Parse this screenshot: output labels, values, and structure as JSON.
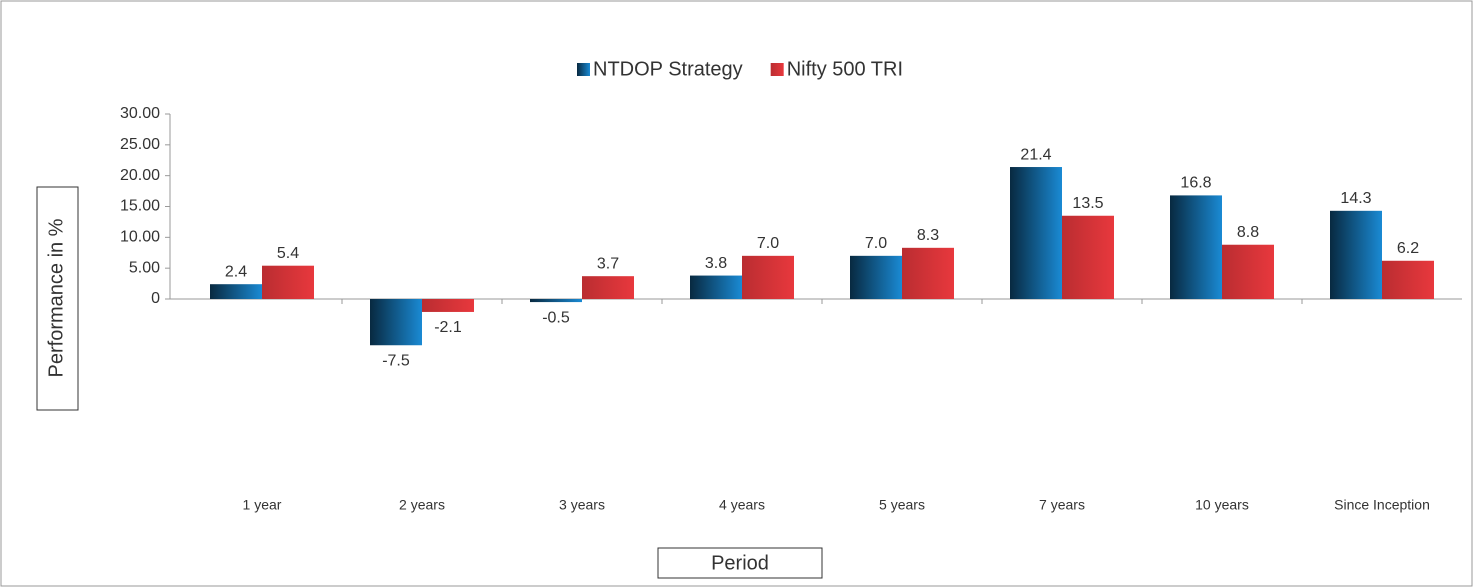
{
  "chart_data": {
    "type": "bar",
    "categories": [
      "1 year",
      "2 years",
      "3 years",
      "4 years",
      "5 years",
      "7 years",
      "10 years",
      "Since Inception"
    ],
    "series": [
      {
        "name": "NTDOP Strategy",
        "color": "#1a8ad4",
        "values": [
          2.4,
          -7.5,
          -0.5,
          3.8,
          7.0,
          21.4,
          16.8,
          14.3
        ],
        "value_labels": [
          "2.4",
          "-7.5",
          "-0.5",
          "3.8",
          "7.0",
          "21.4",
          "16.8",
          "14.3"
        ]
      },
      {
        "name": "Nifty 500 TRI",
        "color": "#e8383d",
        "values": [
          5.4,
          -2.1,
          3.7,
          7.0,
          8.3,
          13.5,
          8.8,
          6.2
        ],
        "value_labels": [
          "5.4",
          "-2.1",
          "3.7",
          "7.0",
          "8.3",
          "13.5",
          "8.8",
          "6.2"
        ]
      }
    ],
    "y_label": "Performance in %",
    "x_label": "Period",
    "ylim": [
      -30,
      30
    ],
    "yticks": [
      0,
      {
        "value": 5,
        "label": "5.00"
      },
      {
        "value": 10,
        "label": "10.00"
      },
      {
        "value": 15,
        "label": "15.00"
      },
      {
        "value": 20,
        "label": "20.00"
      },
      {
        "value": 25,
        "label": "25.00"
      },
      {
        "value": 30,
        "label": "30.00"
      }
    ],
    "legend": "top"
  }
}
